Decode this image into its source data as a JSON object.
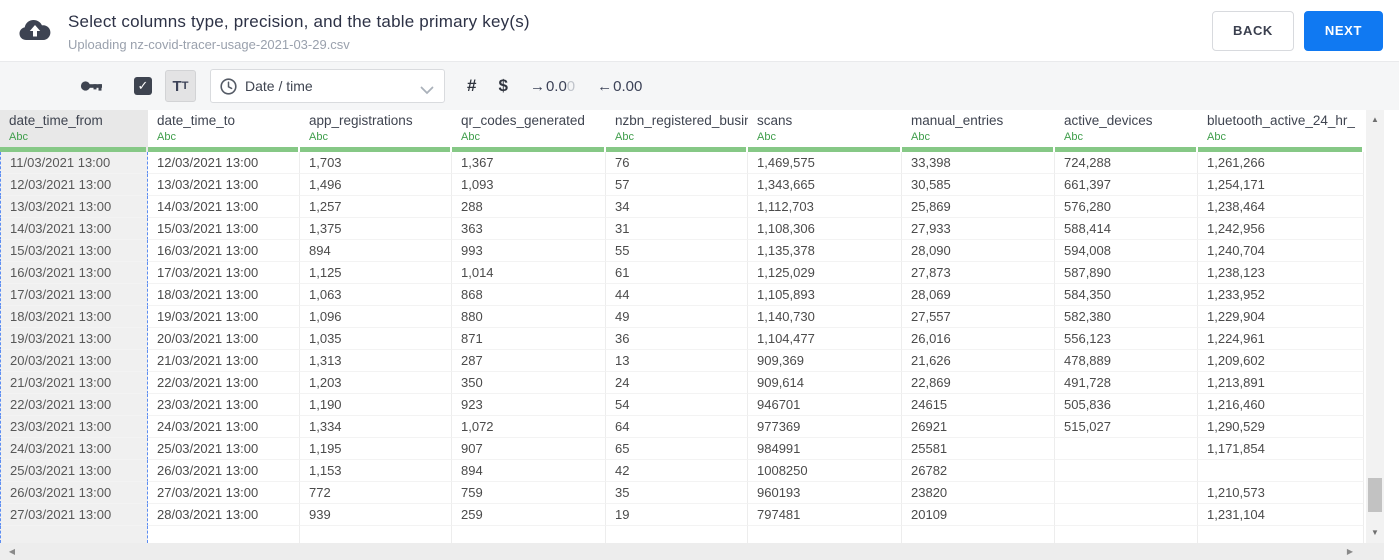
{
  "header": {
    "title": "Select columns type, precision, and the table primary key(s)",
    "subtitle": "Uploading nz-covid-tracer-usage-2021-03-29.csv",
    "back_label": "BACK",
    "next_label": "NEXT",
    "next_color": "#1079f2"
  },
  "toolbar": {
    "checkbox_checked": true,
    "text_type_button": {
      "big": "T",
      "small": "T"
    },
    "type_dropdown": {
      "selected": "Date / time"
    },
    "numeric_label": "#",
    "currency_label": "$",
    "precision_right": {
      "arrow": "→",
      "value": "0.0",
      "faded": "0"
    },
    "precision_left": {
      "arrow": "←",
      "value": "0.00"
    }
  },
  "icons": {
    "check": "✓",
    "scroll_up": "▲",
    "scroll_down": "▼",
    "scroll_left": "◀",
    "scroll_right": "▶"
  },
  "colors": {
    "type_green": "#3f9e4b",
    "column_underline_green": "#86c886",
    "selected_column_dashed_blue": "#5c8df2",
    "selected_column_bg": "#f0f0f0"
  },
  "table": {
    "selected_column_index": 0,
    "type_label": "Abc",
    "columns": [
      {
        "name": "date_time_from",
        "type": "Abc"
      },
      {
        "name": "date_time_to",
        "type": "Abc"
      },
      {
        "name": "app_registrations",
        "type": "Abc"
      },
      {
        "name": "qr_codes_generated",
        "type": "Abc"
      },
      {
        "name": "nzbn_registered_busine",
        "type": "Abc"
      },
      {
        "name": "scans",
        "type": "Abc"
      },
      {
        "name": "manual_entries",
        "type": "Abc"
      },
      {
        "name": "active_devices",
        "type": "Abc"
      },
      {
        "name": "bluetooth_active_24_hr_",
        "type": "Abc"
      }
    ],
    "rows": [
      [
        "11/03/2021 13:00",
        "12/03/2021 13:00",
        "1,703",
        "1,367",
        "76",
        "1,469,575",
        "33,398",
        "724,288",
        "1,261,266"
      ],
      [
        "12/03/2021 13:00",
        "13/03/2021 13:00",
        "1,496",
        "1,093",
        "57",
        "1,343,665",
        "30,585",
        "661,397",
        "1,254,171"
      ],
      [
        "13/03/2021 13:00",
        "14/03/2021 13:00",
        "1,257",
        "288",
        "34",
        "1,112,703",
        "25,869",
        "576,280",
        "1,238,464"
      ],
      [
        "14/03/2021 13:00",
        "15/03/2021 13:00",
        "1,375",
        "363",
        "31",
        "1,108,306",
        "27,933",
        "588,414",
        "1,242,956"
      ],
      [
        "15/03/2021 13:00",
        "16/03/2021 13:00",
        "894",
        "993",
        "55",
        "1,135,378",
        "28,090",
        "594,008",
        "1,240,704"
      ],
      [
        "16/03/2021 13:00",
        "17/03/2021 13:00",
        "1,125",
        "1,014",
        "61",
        "1,125,029",
        "27,873",
        "587,890",
        "1,238,123"
      ],
      [
        "17/03/2021 13:00",
        "18/03/2021 13:00",
        "1,063",
        "868",
        "44",
        "1,105,893",
        "28,069",
        "584,350",
        "1,233,952"
      ],
      [
        "18/03/2021 13:00",
        "19/03/2021 13:00",
        "1,096",
        "880",
        "49",
        "1,140,730",
        "27,557",
        "582,380",
        "1,229,904"
      ],
      [
        "19/03/2021 13:00",
        "20/03/2021 13:00",
        "1,035",
        "871",
        "36",
        "1,104,477",
        "26,016",
        "556,123",
        "1,224,961"
      ],
      [
        "20/03/2021 13:00",
        "21/03/2021 13:00",
        "1,313",
        "287",
        "13",
        "909,369",
        "21,626",
        "478,889",
        "1,209,602"
      ],
      [
        "21/03/2021 13:00",
        "22/03/2021 13:00",
        "1,203",
        "350",
        "24",
        "909,614",
        "22,869",
        "491,728",
        "1,213,891"
      ],
      [
        "22/03/2021 13:00",
        "23/03/2021 13:00",
        "1,190",
        "923",
        "54",
        "946701",
        "24615",
        "505,836",
        "1,216,460"
      ],
      [
        "23/03/2021 13:00",
        "24/03/2021 13:00",
        "1,334",
        "1,072",
        "64",
        "977369",
        "26921",
        "515,027",
        "1,290,529"
      ],
      [
        "24/03/2021 13:00",
        "25/03/2021 13:00",
        "1,195",
        "907",
        "65",
        "984991",
        "25581",
        "",
        "1,171,854"
      ],
      [
        "25/03/2021 13:00",
        "26/03/2021 13:00",
        "1,153",
        "894",
        "42",
        "1008250",
        "26782",
        "",
        ""
      ],
      [
        "26/03/2021 13:00",
        "27/03/2021 13:00",
        "772",
        "759",
        "35",
        "960193",
        "23820",
        "",
        "1,210,573"
      ],
      [
        "27/03/2021 13:00",
        "28/03/2021 13:00",
        "939",
        "259",
        "19",
        "797481",
        "20109",
        "",
        "1,231,104"
      ]
    ]
  }
}
